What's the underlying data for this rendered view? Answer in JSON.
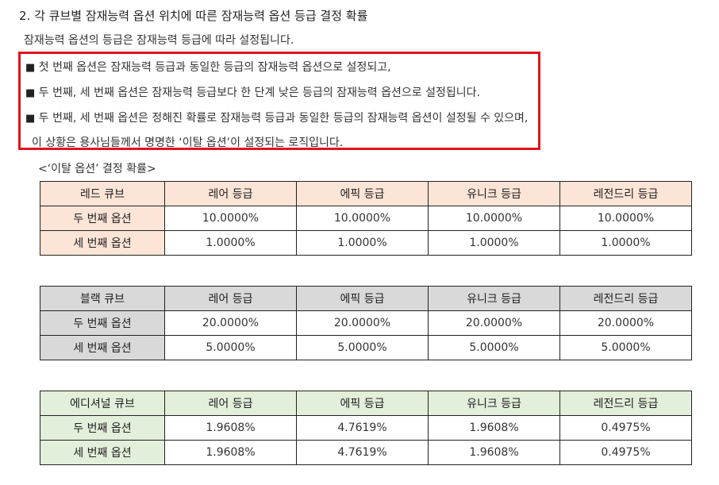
{
  "heading": "2.  각 큐브별 잠재능력 옵션 위치에 따른 잠재능력 옵션 등급 결정 확률",
  "intro": "잠재능력 옵션의 등급은 잠재능력 등급에 따라 설정됩니다.",
  "notes": {
    "bullet": "■",
    "line1": "첫 번째 옵션은 잠재능력 등급과 동일한 등급의 잠재능력 옵션으로 설정되고,",
    "line2": "두 번째, 세 번째 옵션은 잠재능력 등급보다 한 단계 낮은 등급의 잠재능력 옵션으로 설정됩니다.",
    "line3": "두 번째, 세 번째 옵션은 정해진 확률로 잠재능력 등급과 동일한 등급의 잠재능력 옵션이 설정될 수 있으며,",
    "line4": "이 상황은 용사님들께서 명명한 ‘이탈 옵션’이 설정되는 로직입니다."
  },
  "caption": "<‘이탈 옵션’ 결정 확률>",
  "columns": [
    "레어 등급",
    "에픽 등급",
    "유니크 등급",
    "레전드리 등급"
  ],
  "row_labels": [
    "두 번째 옵션",
    "세 번째 옵션"
  ],
  "colors": {
    "red_cube": "#fce4d6",
    "black_cube": "#d9d9d9",
    "additional_cube": "#e2efda",
    "highlight_border": "#e0141e"
  },
  "tables": {
    "red": {
      "name": "레드 큐브",
      "row2": [
        "10.0000%",
        "10.0000%",
        "10.0000%",
        "10.0000%"
      ],
      "row3": [
        "1.0000%",
        "1.0000%",
        "1.0000%",
        "1.0000%"
      ]
    },
    "black": {
      "name": "블랙 큐브",
      "row2": [
        "20.0000%",
        "20.0000%",
        "20.0000%",
        "20.0000%"
      ],
      "row3": [
        "5.0000%",
        "5.0000%",
        "5.0000%",
        "5.0000%"
      ]
    },
    "additional": {
      "name": "에디셔널 큐브",
      "row2": [
        "1.9608%",
        "4.7619%",
        "1.9608%",
        "0.4975%"
      ],
      "row3": [
        "1.9608%",
        "4.7619%",
        "1.9608%",
        "0.4975%"
      ]
    }
  }
}
